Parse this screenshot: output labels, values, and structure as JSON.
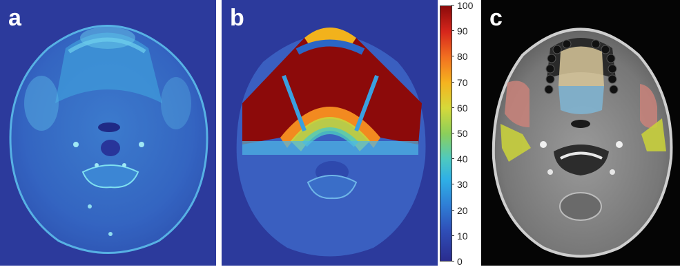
{
  "panels": {
    "a": {
      "label": "a"
    },
    "b": {
      "label": "b"
    },
    "c": {
      "label": "c"
    }
  },
  "colorbar": {
    "ticks": [
      "100",
      "90",
      "80",
      "70",
      "60",
      "50",
      "40",
      "30",
      "20",
      "10",
      "0"
    ],
    "range": [
      0,
      100
    ],
    "colormap": "jet"
  },
  "colors": {
    "map_background": "#2c3a9c",
    "high": "#8c0a0a",
    "roi_tongue_base": "#d8c79a",
    "roi_tongue": "#7fb2cf",
    "roi_masseter": "#c9837a",
    "roi_parotid": "#c8cf3c"
  }
}
